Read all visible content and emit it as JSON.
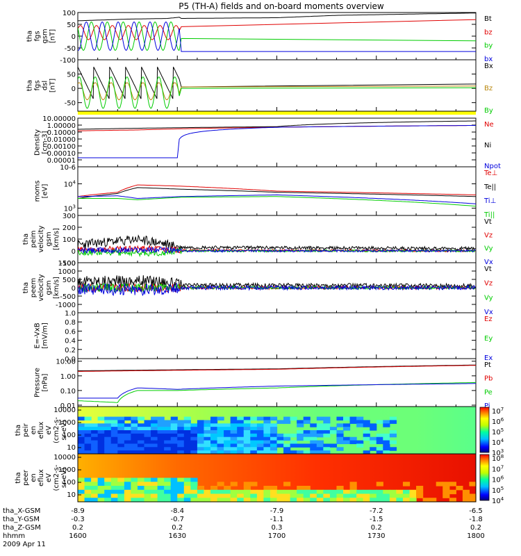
{
  "figure": {
    "title": "P5 (TH-A) fields and on-board moments overview",
    "colors": {
      "black": "#000000",
      "red": "#e00000",
      "green": "#00cc00",
      "blue": "#0000dd",
      "yellow": "#ffff00",
      "orange": "#b8860b"
    }
  },
  "chart_data": [
    {
      "id": "fgs_gsm",
      "type": "line",
      "ylabel": [
        "tha",
        "fgs",
        "gsm",
        "[nT]"
      ],
      "ylim": [
        -100,
        100
      ],
      "yticks": [
        100,
        50,
        0,
        -50,
        -100
      ],
      "legend_placement": "right",
      "series": [
        {
          "name": "Bt",
          "color": "#000000",
          "x": [
            1600,
            1625,
            1645,
            1651,
            1652,
            1700,
            1730,
            1800
          ],
          "y": [
            65,
            72,
            75,
            80,
            75,
            78,
            88,
            98
          ]
        },
        {
          "name": "bz",
          "color": "#e00000",
          "kind": "sine",
          "x0": 1600,
          "x1": 1651,
          "center": 15,
          "amp": 30,
          "period": 8,
          "phase": 0.5,
          "then": {
            "x": [
              1652,
              1800
            ],
            "y": [
              40,
              70
            ]
          }
        },
        {
          "name": "by",
          "color": "#00cc00",
          "kind": "sine",
          "x0": 1600,
          "x1": 1651,
          "center": 0,
          "amp": 60,
          "period": 8,
          "phase": 2.5,
          "then": {
            "x": [
              1652,
              1800
            ],
            "y": [
              -10,
              -20
            ]
          }
        },
        {
          "name": "bx",
          "color": "#0000dd",
          "kind": "sine",
          "x0": 1600,
          "x1": 1651,
          "center": 0,
          "amp": 60,
          "period": 8,
          "phase": 4.5,
          "then": {
            "x": [
              1652,
              1800
            ],
            "y": [
              -65,
              -65
            ]
          }
        }
      ]
    },
    {
      "id": "fgs_dsl",
      "type": "line",
      "ylabel": [
        "tha",
        "fgs",
        "dsl",
        "[nT]"
      ],
      "ylim": [
        -80,
        100
      ],
      "yticks": [
        50,
        0,
        -50
      ],
      "legend_placement": "right",
      "series": [
        {
          "name": "Bx",
          "color": "#000000",
          "kind": "saw",
          "x0": 1600,
          "x1": 1651,
          "top": 75,
          "bottom": -40,
          "period": 8,
          "then": {
            "x": [
              1652,
              1800
            ],
            "y": [
              5,
              15
            ]
          }
        },
        {
          "name": "Bz",
          "color": "#b8860b",
          "kind": "sine",
          "x0": 1600,
          "x1": 1651,
          "center": -10,
          "amp": 30,
          "period": 8,
          "phase": 1,
          "then": {
            "x": [
              1652,
              1800
            ],
            "y": [
              5,
              8
            ]
          }
        },
        {
          "name": "By",
          "color": "#00cc00",
          "kind": "sine",
          "x0": 1600,
          "x1": 1651,
          "center": -15,
          "amp": 55,
          "period": 8,
          "phase": 1,
          "then": {
            "x": [
              1652,
              1800
            ],
            "y": [
              0,
              2
            ]
          }
        }
      ]
    },
    {
      "id": "density",
      "type": "line",
      "log": true,
      "ylabel": [
        "Density",
        "[cm-3]"
      ],
      "ylim": [
        1e-06,
        10
      ],
      "yticks": [
        "10.00000",
        "1.00000",
        "0.10000",
        "0.01000",
        "0.00100",
        "0.00010",
        "0.00001",
        "10-6"
      ],
      "legend_placement": "right",
      "series": [
        {
          "name": "Ne",
          "color": "#e00000",
          "x": [
            1600,
            1630,
            1700,
            1800
          ],
          "y": [
            0.15,
            0.2,
            0.5,
            0.9
          ]
        },
        {
          "name": "Ni",
          "color": "#000000",
          "x": [
            1600,
            1630,
            1700,
            1800
          ],
          "y": [
            0.25,
            0.35,
            0.6,
            4.0
          ]
        },
        {
          "name": "Npot",
          "color": "#0000dd",
          "x": [
            1600,
            1650,
            1702,
            1800
          ],
          "y": [
            2e-05,
            2e-05,
            0.5,
            0.9
          ]
        }
      ]
    },
    {
      "id": "temperature",
      "type": "line",
      "log": true,
      "ylabel": [
        "moms",
        "[eV]"
      ],
      "ylim": [
        500,
        50000
      ],
      "yticks": [
        "10^4",
        "10^3"
      ],
      "legend_placement": "right",
      "series": [
        {
          "name": "Te⊥",
          "color": "#e00000",
          "x": [
            1600,
            1620,
            1630,
            1652,
            1700,
            1800
          ],
          "y": [
            3000,
            4500,
            9000,
            8000,
            5000,
            3500
          ]
        },
        {
          "name": "Te||",
          "color": "#000000",
          "x": [
            1600,
            1620,
            1630,
            1652,
            1700,
            1800
          ],
          "y": [
            2500,
            4000,
            7000,
            6000,
            4500,
            3000
          ]
        },
        {
          "name": "Ti⊥",
          "color": "#0000dd",
          "x": [
            1600,
            1620,
            1630,
            1652,
            1700,
            1800
          ],
          "y": [
            3000,
            3200,
            2500,
            3000,
            3500,
            1500
          ]
        },
        {
          "name": "Ti||",
          "color": "#00cc00",
          "x": [
            1600,
            1620,
            1630,
            1652,
            1700,
            1800
          ],
          "y": [
            2500,
            2500,
            2200,
            2800,
            3000,
            1200
          ]
        }
      ]
    },
    {
      "id": "ion_velocity",
      "type": "line",
      "ylabel": [
        "tha",
        "peim",
        "velocity",
        "gsm",
        "[km/s]"
      ],
      "ylim": [
        -100,
        300
      ],
      "yticks": [
        300,
        200,
        100,
        0,
        -100
      ],
      "legend_placement": "right",
      "series": [
        {
          "name": "Vt",
          "color": "#000000",
          "noise": 40,
          "x": [
            1600,
            1630,
            1640,
            1652,
            1800
          ],
          "y": [
            50,
            100,
            70,
            30,
            20
          ]
        },
        {
          "name": "Vz",
          "color": "#e00000",
          "noise": 25,
          "x": [
            1600,
            1640,
            1652,
            1800
          ],
          "y": [
            10,
            20,
            5,
            0
          ]
        },
        {
          "name": "Vy",
          "color": "#00cc00",
          "noise": 25,
          "x": [
            1600,
            1640,
            1652,
            1800
          ],
          "y": [
            -10,
            -20,
            0,
            0
          ]
        },
        {
          "name": "Vx",
          "color": "#0000dd",
          "noise": 25,
          "x": [
            1600,
            1640,
            1652,
            1800
          ],
          "y": [
            0,
            10,
            0,
            0
          ]
        }
      ]
    },
    {
      "id": "electron_velocity",
      "type": "line",
      "ylabel": [
        "tha",
        "peem",
        "velocity",
        "gsm",
        "[km/s]"
      ],
      "ylim": [
        -1500,
        1500
      ],
      "yticks": [
        1500,
        1000,
        500,
        0,
        -500,
        -1000
      ],
      "legend_placement": "right",
      "series": [
        {
          "name": "Vt",
          "color": "#000000",
          "noise": 350,
          "x": [
            1600,
            1640,
            1652,
            1700,
            1800
          ],
          "y": [
            400,
            400,
            150,
            150,
            120
          ]
        },
        {
          "name": "Vz",
          "color": "#e00000",
          "noise": 250,
          "x": [
            1600,
            1640,
            1652,
            1800
          ],
          "y": [
            0,
            0,
            0,
            0
          ]
        },
        {
          "name": "Vy",
          "color": "#00cc00",
          "noise": 250,
          "x": [
            1600,
            1640,
            1652,
            1800
          ],
          "y": [
            0,
            0,
            0,
            0
          ]
        },
        {
          "name": "Vx",
          "color": "#0000dd",
          "noise": 350,
          "x": [
            1600,
            1640,
            1652,
            1800
          ],
          "y": [
            -100,
            -100,
            0,
            0
          ]
        }
      ]
    },
    {
      "id": "efield",
      "type": "line",
      "ylabel": [
        "E=-VxB",
        "[mV/m]"
      ],
      "ylim": [
        0,
        1
      ],
      "yticks": [
        "1.0",
        "0.8",
        "0.6",
        "0.4",
        "0.2",
        "0.0"
      ],
      "legend_placement": "right",
      "series": [
        {
          "name": "Ez",
          "color": "#e00000",
          "x": [],
          "y": []
        },
        {
          "name": "Ey",
          "color": "#00cc00",
          "x": [],
          "y": []
        },
        {
          "name": "Ex",
          "color": "#0000dd",
          "x": [],
          "y": []
        }
      ]
    },
    {
      "id": "pressure",
      "type": "line",
      "log": true,
      "ylabel": [
        "Pressure",
        "[nPa]"
      ],
      "ylim": [
        0.008,
        15
      ],
      "yticks": [
        "10.00",
        "1.00",
        "0.10",
        "0.01"
      ],
      "legend_placement": "right",
      "series": [
        {
          "name": "Pt",
          "color": "#000000",
          "x": [
            1600,
            1700,
            1800
          ],
          "y": [
            2.2,
            3.0,
            5.5
          ]
        },
        {
          "name": "Pb",
          "color": "#e00000",
          "x": [
            1600,
            1700,
            1800
          ],
          "y": [
            2.0,
            2.8,
            5.2
          ]
        },
        {
          "name": "Pe",
          "color": "#00cc00",
          "x": [
            1600,
            1620,
            1630,
            1650,
            1700,
            1800
          ],
          "y": [
            0.02,
            0.015,
            0.1,
            0.1,
            0.15,
            0.35
          ]
        },
        {
          "name": "Pi",
          "color": "#0000dd",
          "x": [
            1600,
            1620,
            1630,
            1650,
            1700,
            1800
          ],
          "y": [
            0.03,
            0.03,
            0.15,
            0.12,
            0.2,
            0.3
          ]
        }
      ]
    },
    {
      "id": "ion_spectrogram",
      "type": "heatmap",
      "ylabel": [
        "tha",
        "peir",
        "en",
        "eflux",
        "eV",
        "(cm2-s-",
        "sr-eV)"
      ],
      "yticks": [
        "10000",
        "1000",
        "100",
        "10"
      ],
      "colorbar_ticks": [
        "10^7",
        "10^6",
        "10^5",
        "10^4",
        "10^3"
      ]
    },
    {
      "id": "electron_spectrogram",
      "type": "heatmap",
      "ylabel": [
        "tha",
        "peer",
        "en",
        "eflux",
        "eV",
        "(cm2-s-",
        "sr-eV)"
      ],
      "yticks": [
        "10000",
        "1000",
        "100",
        "10"
      ],
      "colorbar_ticks": [
        "10^8",
        "10^7",
        "10^6",
        "10^5",
        "10^4"
      ]
    }
  ],
  "xaxis": {
    "rows": [
      {
        "label": "tha_X-GSM",
        "values": [
          "-8.9",
          "-8.4",
          "-7.9",
          "-7.2",
          "-6.5"
        ]
      },
      {
        "label": "tha_Y-GSM",
        "values": [
          "-0.3",
          "-0.7",
          "-1.1",
          "-1.5",
          "-1.8"
        ]
      },
      {
        "label": "tha_Z-GSM",
        "values": [
          "0.2",
          "0.2",
          "0.3",
          "0.2",
          "0.2"
        ]
      },
      {
        "label": "hhmm",
        "values": [
          "1600",
          "1630",
          "1700",
          "1730",
          "1800"
        ]
      }
    ],
    "date": "2009 Apr 11"
  }
}
